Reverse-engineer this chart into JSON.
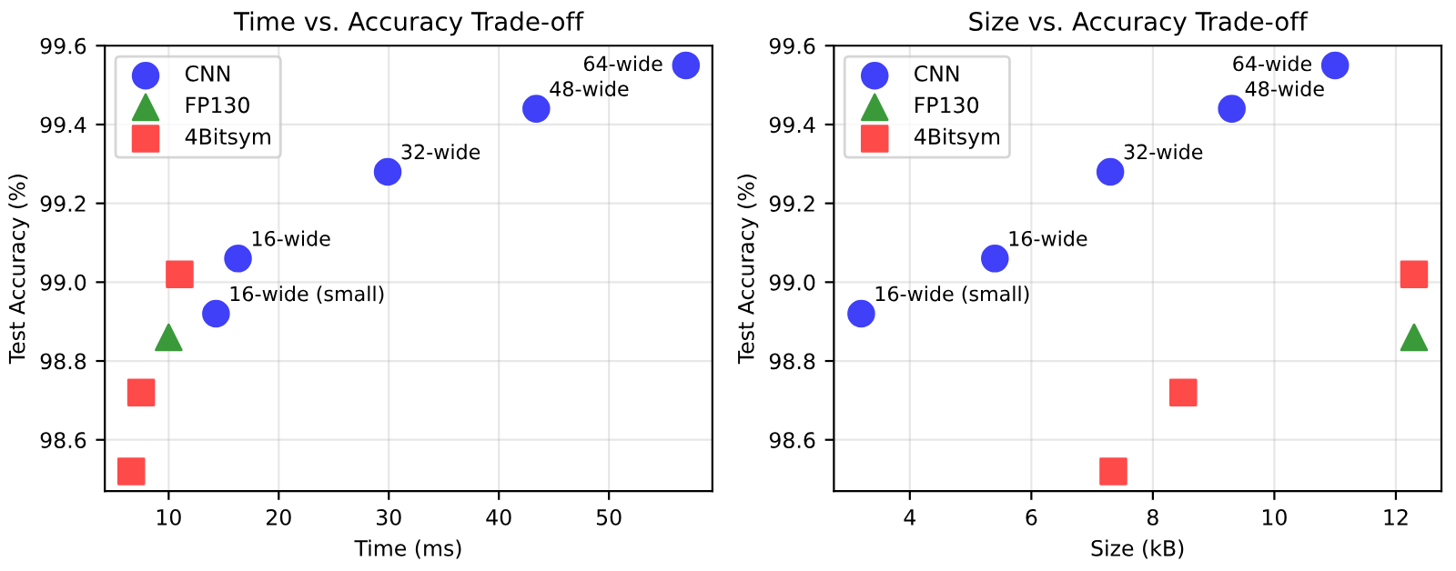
{
  "chart_data": [
    {
      "type": "scatter",
      "title": "Time vs. Accuracy Trade-off",
      "xlabel": "Time (ms)",
      "ylabel": "Test Accuracy (%)",
      "xlim": [
        4.2,
        59.4
      ],
      "ylim": [
        98.47,
        99.6
      ],
      "xticks": [
        10,
        20,
        30,
        40,
        50
      ],
      "yticks": [
        {
          "value": 98.6,
          "label": "98.6"
        },
        {
          "value": 98.8,
          "label": "98.8"
        },
        {
          "value": 99.0,
          "label": "99.0"
        },
        {
          "value": 99.2,
          "label": "99.2"
        },
        {
          "value": 99.4,
          "label": "99.4"
        },
        {
          "value": 99.6,
          "label": "99.6"
        }
      ],
      "grid": true,
      "legend": "top left",
      "series": [
        {
          "name": "CNN",
          "color": "#4040f8",
          "marker": "circle",
          "x": [
            14.3,
            16.3,
            29.9,
            43.4,
            57.0
          ],
          "values": [
            98.92,
            99.06,
            99.28,
            99.44,
            99.55
          ]
        },
        {
          "name": "FP130",
          "color": "#3a9a3a",
          "marker": "triangle",
          "x": [
            10.0
          ],
          "values": [
            98.86
          ]
        },
        {
          "name": "4Bitsym",
          "color": "#ff4a4a",
          "marker": "square",
          "x": [
            6.6,
            7.5,
            11.0
          ],
          "values": [
            98.52,
            98.72,
            99.02
          ]
        }
      ],
      "annotations": [
        {
          "text": "16-wide (small)",
          "x": 14.3,
          "y": 98.92
        },
        {
          "text": "16-wide",
          "x": 16.3,
          "y": 99.06
        },
        {
          "text": "32-wide",
          "x": 29.9,
          "y": 99.28
        },
        {
          "text": "48-wide",
          "x": 43.4,
          "y": 99.44
        },
        {
          "text": "64-wide",
          "x": 57.0,
          "y": 99.55
        }
      ]
    },
    {
      "type": "scatter",
      "title": "Size vs. Accuracy Trade-off",
      "xlabel": "Size (kB)",
      "ylabel": "Test Accuracy (%)",
      "xlim": [
        2.75,
        12.75
      ],
      "ylim": [
        98.47,
        99.6
      ],
      "xticks": [
        4,
        6,
        8,
        10,
        12
      ],
      "yticks": [
        {
          "value": 98.6,
          "label": "98.6"
        },
        {
          "value": 98.8,
          "label": "98.8"
        },
        {
          "value": 99.0,
          "label": "99.0"
        },
        {
          "value": 99.2,
          "label": "99.2"
        },
        {
          "value": 99.4,
          "label": "99.4"
        },
        {
          "value": 99.6,
          "label": "99.6"
        }
      ],
      "grid": true,
      "legend": "top left",
      "series": [
        {
          "name": "CNN",
          "color": "#4040f8",
          "marker": "circle",
          "x": [
            3.2,
            5.4,
            7.3,
            9.3,
            11.0
          ],
          "values": [
            98.92,
            99.06,
            99.28,
            99.44,
            99.55
          ]
        },
        {
          "name": "FP130",
          "color": "#3a9a3a",
          "marker": "triangle",
          "x": [
            12.3
          ],
          "values": [
            98.86
          ]
        },
        {
          "name": "4Bitsym",
          "color": "#ff4a4a",
          "marker": "square",
          "x": [
            7.35,
            8.5,
            12.3
          ],
          "values": [
            98.52,
            98.72,
            99.02
          ]
        }
      ],
      "annotations": [
        {
          "text": "16-wide (small)",
          "x": 3.2,
          "y": 98.92
        },
        {
          "text": "16-wide",
          "x": 5.4,
          "y": 99.06
        },
        {
          "text": "32-wide",
          "x": 7.3,
          "y": 99.28
        },
        {
          "text": "48-wide",
          "x": 9.3,
          "y": 99.44
        },
        {
          "text": "64-wide",
          "x": 11.0,
          "y": 99.55
        }
      ]
    }
  ]
}
